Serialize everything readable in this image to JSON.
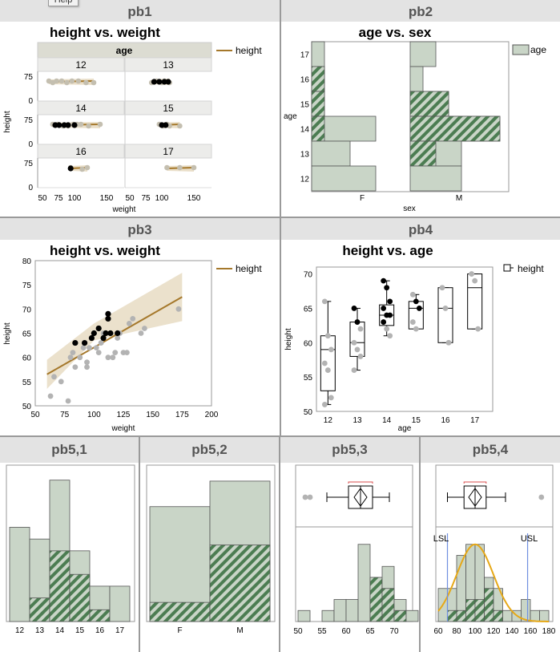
{
  "tooltip": "Help",
  "colors": {
    "accent": "#a5782b",
    "band": "#e8dcc3",
    "female": "#b3b3b3",
    "male": "#000000",
    "bar": "#c9d5c7",
    "hatch": "#4c7d52",
    "bartext": "#000000",
    "line": "#6f8fe0",
    "curve": "#e6a817",
    "spec": "#d94c4c"
  },
  "panels": {
    "pb1": {
      "header": "pb1",
      "title": "height vs. weight",
      "group_label": "age",
      "legend": "height",
      "xlabel": "weight",
      "ylabel": "height",
      "facets": [
        "12",
        "13",
        "14",
        "15",
        "16",
        "17"
      ],
      "x_ticks": [
        "50",
        "75",
        "100",
        "150",
        "50",
        "75",
        "100",
        "150"
      ],
      "y_ticks": [
        "75",
        "0"
      ]
    },
    "pb2": {
      "header": "pb2",
      "title": "age vs. sex",
      "legend": "age",
      "xlabel": "sex",
      "ylabel": "age",
      "y_ticks": [
        "17",
        "16",
        "15",
        "14",
        "13",
        "12"
      ],
      "x_ticks": [
        "F",
        "M"
      ]
    },
    "pb3": {
      "header": "pb3",
      "title": "height vs. weight",
      "legend": "height",
      "xlabel": "weight",
      "ylabel": "height",
      "x_ticks": [
        "50",
        "75",
        "100",
        "125",
        "150",
        "175",
        "200"
      ],
      "y_ticks": [
        "80",
        "75",
        "70",
        "65",
        "60",
        "55",
        "50"
      ]
    },
    "pb4": {
      "header": "pb4",
      "title": "height vs. age",
      "legend": "height",
      "xlabel": "age",
      "ylabel": "height",
      "x_ticks": [
        "12",
        "13",
        "14",
        "15",
        "16",
        "17"
      ],
      "y_ticks": [
        "70",
        "65",
        "60",
        "55",
        "50"
      ]
    },
    "pb5_1": {
      "header": "pb5,1",
      "x_ticks": [
        "12",
        "13",
        "14",
        "15",
        "16",
        "17"
      ]
    },
    "pb5_2": {
      "header": "pb5,2",
      "x_ticks": [
        "F",
        "M"
      ]
    },
    "pb5_3": {
      "header": "pb5,3",
      "x_ticks": [
        "50",
        "55",
        "60",
        "65",
        "70"
      ]
    },
    "pb5_4": {
      "header": "pb5,4",
      "x_ticks": [
        "60",
        "80",
        "100",
        "120",
        "140",
        "160",
        "180"
      ],
      "lsl": "LSL",
      "usl": "USL"
    }
  },
  "chart_data": [
    {
      "id": "pb3",
      "type": "scatter",
      "title": "height vs. weight",
      "xlabel": "weight",
      "ylabel": "height",
      "xlim": [
        50,
        200
      ],
      "ylim": [
        50,
        80
      ],
      "fit": {
        "x": [
          60,
          175
        ],
        "y": [
          56.5,
          72.5
        ]
      },
      "series": [
        {
          "name": "F",
          "points": [
            [
              63,
              52
            ],
            [
              66,
              56
            ],
            [
              72,
              55
            ],
            [
              78,
              51
            ],
            [
              80,
              60
            ],
            [
              82,
              61
            ],
            [
              84,
              58
            ],
            [
              88,
              60
            ],
            [
              91,
              62
            ],
            [
              94,
              59
            ],
            [
              94,
              58
            ],
            [
              96,
              62
            ],
            [
              102,
              62
            ],
            [
              104,
              61
            ],
            [
              106,
              63
            ],
            [
              108,
              65
            ],
            [
              112,
              60
            ],
            [
              116,
              60
            ],
            [
              118,
              61
            ],
            [
              120,
              64
            ],
            [
              122,
              65
            ],
            [
              125,
              61
            ],
            [
              128,
              61
            ],
            [
              130,
              67
            ],
            [
              133,
              68
            ],
            [
              140,
              65
            ],
            [
              143,
              66
            ],
            [
              172,
              70
            ]
          ]
        },
        {
          "name": "M",
          "points": [
            [
              84,
              63
            ],
            [
              92,
              63
            ],
            [
              98,
              64
            ],
            [
              100,
              65
            ],
            [
              104,
              66
            ],
            [
              108,
              64
            ],
            [
              110,
              65
            ],
            [
              112,
              68
            ],
            [
              112,
              69
            ],
            [
              114,
              65
            ],
            [
              120,
              65
            ]
          ]
        }
      ]
    },
    {
      "id": "pb4",
      "type": "box",
      "title": "height vs. age",
      "xlabel": "age",
      "ylabel": "height",
      "ylim": [
        50,
        71
      ],
      "categories": [
        "12",
        "13",
        "14",
        "15",
        "16",
        "17"
      ],
      "boxes": [
        {
          "q1": 53,
          "median": 59,
          "q3": 61,
          "wlow": 51,
          "whigh": 66,
          "points": [
            {
              "y": 66,
              "c": "f"
            },
            {
              "y": 61,
              "c": "f"
            },
            {
              "y": 59,
              "c": "f"
            },
            {
              "y": 57,
              "c": "f"
            },
            {
              "y": 56,
              "c": "f"
            },
            {
              "y": 52,
              "c": "f"
            },
            {
              "y": 51,
              "c": "f"
            }
          ]
        },
        {
          "q1": 58,
          "median": 60,
          "q3": 63,
          "wlow": 56,
          "whigh": 65,
          "points": [
            {
              "y": 65,
              "c": "m"
            },
            {
              "y": 63,
              "c": "m"
            },
            {
              "y": 62,
              "c": "f"
            },
            {
              "y": 60,
              "c": "f"
            },
            {
              "y": 59,
              "c": "f"
            },
            {
              "y": 58,
              "c": "f"
            },
            {
              "y": 56,
              "c": "f"
            }
          ]
        },
        {
          "q1": 62.5,
          "median": 64,
          "q3": 65.5,
          "wlow": 61,
          "whigh": 69,
          "points": [
            {
              "y": 69,
              "c": "m"
            },
            {
              "y": 68,
              "c": "m"
            },
            {
              "y": 66,
              "c": "m"
            },
            {
              "y": 65,
              "c": "m"
            },
            {
              "y": 64,
              "c": "m"
            },
            {
              "y": 64,
              "c": "m"
            },
            {
              "y": 63,
              "c": "m"
            },
            {
              "y": 62,
              "c": "f"
            },
            {
              "y": 61,
              "c": "f"
            }
          ]
        },
        {
          "q1": 62,
          "median": 65,
          "q3": 66,
          "wlow": 62,
          "whigh": 67,
          "points": [
            {
              "y": 67,
              "c": "f"
            },
            {
              "y": 66,
              "c": "m"
            },
            {
              "y": 65,
              "c": "m"
            },
            {
              "y": 63,
              "c": "f"
            },
            {
              "y": 62,
              "c": "f"
            }
          ]
        },
        {
          "q1": 60,
          "median": 65,
          "q3": 68,
          "wlow": 60,
          "whigh": 68,
          "points": [
            {
              "y": 68,
              "c": "f"
            },
            {
              "y": 65,
              "c": "f"
            },
            {
              "y": 60,
              "c": "f"
            }
          ]
        },
        {
          "q1": 62,
          "median": 68,
          "q3": 70,
          "wlow": 62,
          "whigh": 70,
          "points": [
            {
              "y": 70,
              "c": "f"
            },
            {
              "y": 69,
              "c": "f"
            },
            {
              "y": 62,
              "c": "f"
            }
          ]
        }
      ]
    },
    {
      "id": "pb5_1",
      "type": "bar",
      "categories": [
        "12",
        "13",
        "14",
        "15",
        "16",
        "17"
      ],
      "values": [
        8,
        7,
        12,
        6,
        3,
        3
      ],
      "selected": [
        0,
        2,
        6,
        4,
        1,
        0
      ],
      "ylim": [
        0,
        13
      ]
    },
    {
      "id": "pb5_2",
      "type": "bar",
      "categories": [
        "F",
        "M"
      ],
      "values": [
        18,
        22
      ],
      "selected": [
        3,
        12
      ],
      "ylim": [
        0,
        24
      ]
    },
    {
      "id": "pb5_3",
      "type": "histogram",
      "bins": [
        50,
        52.5,
        55,
        57.5,
        60,
        62.5,
        65,
        67.5,
        70,
        72.5
      ],
      "values": [
        1,
        0,
        1,
        2,
        2,
        7,
        4,
        5,
        2,
        1
      ],
      "selected": [
        0,
        0,
        0,
        0,
        0,
        0,
        4,
        3,
        1,
        0
      ],
      "xlim": [
        50,
        72.5
      ],
      "ylim": [
        0,
        8
      ],
      "box": {
        "q1": 60.5,
        "median": 63,
        "q3": 65.5,
        "wlow": 56,
        "whigh": 69,
        "outliers": [
          51.5,
          52.5
        ],
        "mean": 63
      }
    },
    {
      "id": "pb5_4",
      "type": "histogram",
      "bins": [
        60,
        70,
        80,
        90,
        100,
        110,
        120,
        130,
        140,
        150,
        160,
        170,
        180
      ],
      "values": [
        3,
        3,
        6,
        7,
        7,
        4,
        3,
        1,
        1,
        2,
        1,
        1
      ],
      "selected": [
        0,
        1,
        1,
        2,
        2,
        3,
        1,
        0,
        0,
        0,
        0,
        0
      ],
      "xlim": [
        60,
        180
      ],
      "ylim": [
        0,
        8
      ],
      "lsl": 70,
      "usl": 157,
      "curve": {
        "mean": 100,
        "sd": 20,
        "peak": 7
      },
      "box": {
        "q1": 88,
        "median": 100,
        "q3": 112,
        "wlow": 70,
        "whigh": 133,
        "outliers": [
          172
        ],
        "mean": 100
      }
    }
  ]
}
